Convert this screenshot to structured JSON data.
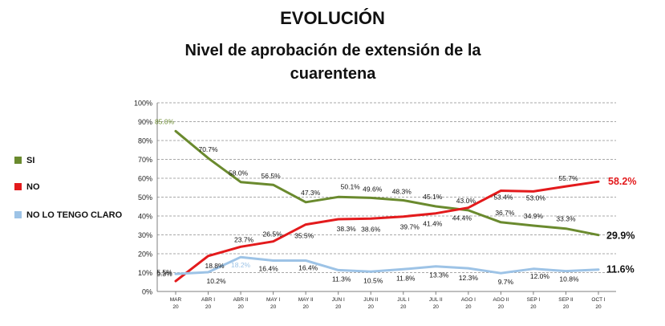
{
  "header": {
    "title": "EVOLUCIÓN",
    "subtitle": "Nivel de aprobación de extensión de la cuarentena"
  },
  "chart_data": {
    "type": "line",
    "title": "Nivel de aprobación de extensión de la cuarentena",
    "xlabel": "",
    "ylabel": "",
    "ylim": [
      0,
      100
    ],
    "y_ticks": [
      "0%",
      "10%",
      "20%",
      "30%",
      "40%",
      "50%",
      "60%",
      "70%",
      "80%",
      "90%",
      "100%"
    ],
    "grid": true,
    "legend_position": "left",
    "categories": [
      [
        "MAR",
        "20"
      ],
      [
        "ABR I",
        "20"
      ],
      [
        "ABR II",
        "20"
      ],
      [
        "MAY I",
        "20"
      ],
      [
        "MAY II",
        "20"
      ],
      [
        "JUN I",
        "20"
      ],
      [
        "JUN II",
        "20"
      ],
      [
        "JUL I",
        "20"
      ],
      [
        "JUL II",
        "20"
      ],
      [
        "AGO I",
        "20"
      ],
      [
        "AGO II",
        "20"
      ],
      [
        "SEP I",
        "20"
      ],
      [
        "SEP II",
        "20"
      ],
      [
        "OCT I",
        "20"
      ]
    ],
    "series": [
      {
        "name": "SI",
        "color": "#6a8a2e",
        "values": [
          85.0,
          70.7,
          58.0,
          56.5,
          47.3,
          50.1,
          49.6,
          48.3,
          45.1,
          43.0,
          36.7,
          34.9,
          33.3,
          29.9
        ],
        "labels": [
          "85.0%",
          "70.7%",
          "58.0%",
          "56.5%",
          "47.3%",
          "50.1%",
          "49.6%",
          "48.3%",
          "45.1%",
          "43.0%",
          "36.7%",
          "34.9%",
          "33.3%",
          "29.9%"
        ]
      },
      {
        "name": "NO",
        "color": "#e31a1c",
        "values": [
          5.5,
          18.8,
          23.7,
          26.5,
          35.5,
          38.3,
          38.6,
          39.7,
          41.4,
          44.4,
          53.4,
          53.0,
          55.7,
          58.2
        ],
        "labels": [
          "5.5%",
          "18.8%",
          "23.7%",
          "26.5%",
          "35.5%",
          "38.3%",
          "38.6%",
          "39.7%",
          "41.4%",
          "44.4%",
          "53.4%",
          "53.0%",
          "55.7%",
          "58.2%"
        ]
      },
      {
        "name": "NO LO TENGO CLARO",
        "color": "#9dc3e6",
        "values": [
          9.3,
          10.2,
          18.2,
          16.4,
          16.4,
          11.3,
          10.5,
          11.8,
          13.3,
          12.3,
          9.7,
          12.0,
          10.8,
          11.6
        ],
        "labels": [
          "9.3%",
          "10.2%",
          "18.2%",
          "16.4%",
          "16.4%",
          "11.3%",
          "10.5%",
          "11.8%",
          "13.3%",
          "12.3%",
          "9.7%",
          "12.0%",
          "10.8%",
          "11.6%"
        ]
      }
    ]
  }
}
